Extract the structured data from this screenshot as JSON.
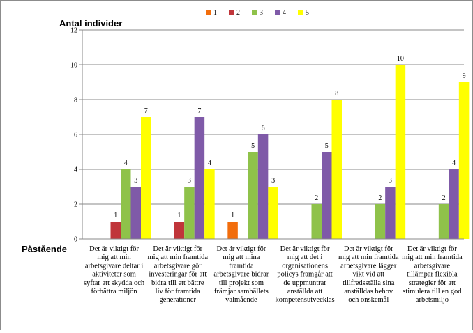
{
  "chart_data": {
    "type": "bar",
    "ylabel": "Antal individer",
    "xlabel": "Påstående",
    "ylim": [
      0,
      12
    ],
    "yticks": [
      0,
      2,
      4,
      6,
      8,
      10,
      12
    ],
    "grid": true,
    "legend_position": "top",
    "categories": [
      [
        "Det är viktigt för",
        "mig att min",
        "arbetsgivare deltar i",
        "aktiviteter som",
        "syftar att skydda och",
        "förbättra miljön"
      ],
      [
        "Det är viktigt för",
        "mig att min framtida",
        "arbetsgivare gör",
        "investeringar för att",
        "bidra till ett bättre",
        "liv för framtida",
        "generationer"
      ],
      [
        "Det är viktigt för",
        "mig att mina",
        "framtida",
        "arbetsgivare bidrar",
        "till projekt som",
        "främjar samhällets",
        "välmående"
      ],
      [
        "Det är viktigt för",
        "mig att det i",
        "organisationens",
        "policys framgår att",
        "de uppmuntrar",
        "anställda att",
        "kompetensutvecklas"
      ],
      [
        "Det är viktigt för",
        "mig att min framtida",
        "arbetsgivare lägger",
        "vikt vid att",
        "tillfredsställa sina",
        "anställdas behov",
        "och önskemål"
      ],
      [
        "Det är viktigt för",
        "mig att min framtida",
        "arbetsgivare",
        "tillämpar flexibla",
        "strategier för att",
        "stimulera till en god",
        "arbetsmiljö"
      ]
    ],
    "series": [
      {
        "name": "1",
        "color": "#f26d0c",
        "values": [
          0,
          0,
          1,
          0,
          0,
          0
        ]
      },
      {
        "name": "2",
        "color": "#c0353a",
        "values": [
          1,
          1,
          0,
          0,
          0,
          0
        ]
      },
      {
        "name": "3",
        "color": "#8fc24a",
        "values": [
          4,
          3,
          5,
          2,
          2,
          2
        ]
      },
      {
        "name": "4",
        "color": "#7f5aa8",
        "values": [
          3,
          7,
          6,
          5,
          3,
          4
        ]
      },
      {
        "name": "5",
        "color": "#ffff00",
        "values": [
          7,
          4,
          3,
          8,
          10,
          9
        ]
      }
    ]
  }
}
